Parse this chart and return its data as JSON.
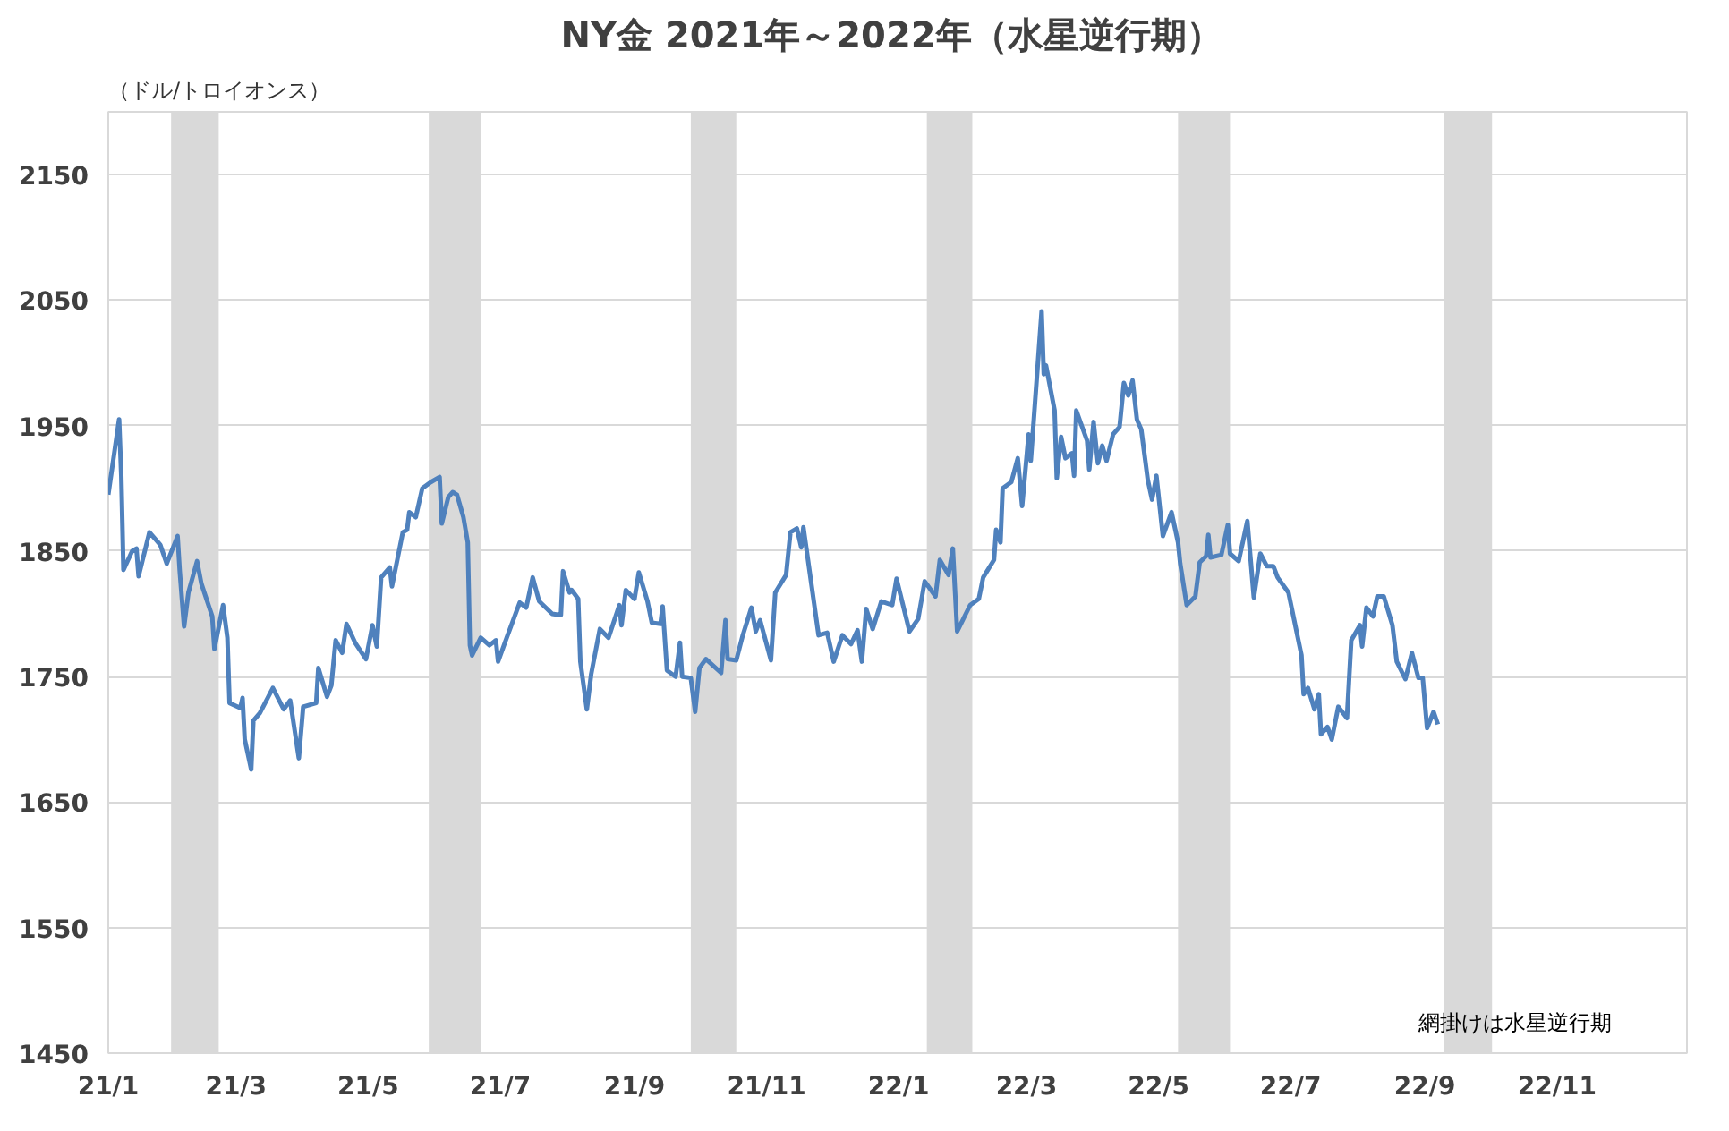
{
  "chart_data": {
    "type": "line",
    "title": "NY金  2021年～2022年（水星逆行期）",
    "ylabel": "（ドル/トロイオンス）",
    "annotations": [
      "網掛けは水星逆行期"
    ],
    "series": [
      {
        "color": "#4f81bd",
        "x": [
          "2021-01-01",
          "2021-01-06",
          "2021-01-07",
          "2021-01-08",
          "2021-01-12",
          "2021-01-14",
          "2021-01-15",
          "2021-01-20",
          "2021-01-25",
          "2021-01-28",
          "2021-02-02",
          "2021-02-03",
          "2021-02-05",
          "2021-02-07",
          "2021-02-11",
          "2021-02-13",
          "2021-02-18",
          "2021-02-19",
          "2021-02-23",
          "2021-02-25",
          "2021-02-26",
          "2021-03-03",
          "2021-03-04",
          "2021-03-05",
          "2021-03-08",
          "2021-03-09",
          "2021-03-12",
          "2021-03-18",
          "2021-03-23",
          "2021-03-26",
          "2021-03-30",
          "2021-04-01",
          "2021-04-07",
          "2021-04-08",
          "2021-04-12",
          "2021-04-14",
          "2021-04-16",
          "2021-04-19",
          "2021-04-21",
          "2021-04-25",
          "2021-04-30",
          "2021-05-03",
          "2021-05-05",
          "2021-05-07",
          "2021-05-11",
          "2021-05-12",
          "2021-05-17",
          "2021-05-19",
          "2021-05-20",
          "2021-05-23",
          "2021-05-26",
          "2021-05-30",
          "2021-06-03",
          "2021-06-04",
          "2021-06-07",
          "2021-06-09",
          "2021-06-11",
          "2021-06-14",
          "2021-06-16",
          "2021-06-17",
          "2021-06-18",
          "2021-06-22",
          "2021-06-26",
          "2021-06-29",
          "2021-06-30",
          "2021-07-04",
          "2021-07-10",
          "2021-07-13",
          "2021-07-16",
          "2021-07-19",
          "2021-07-25",
          "2021-07-29",
          "2021-07-30",
          "2021-08-02",
          "2021-08-03",
          "2021-08-06",
          "2021-08-07",
          "2021-08-10",
          "2021-08-12",
          "2021-08-16",
          "2021-08-20",
          "2021-08-25",
          "2021-08-26",
          "2021-08-28",
          "2021-09-01",
          "2021-09-03",
          "2021-09-07",
          "2021-09-09",
          "2021-09-13",
          "2021-09-14",
          "2021-09-16",
          "2021-09-20",
          "2021-09-22",
          "2021-09-23",
          "2021-09-27",
          "2021-09-29",
          "2021-10-01",
          "2021-10-04",
          "2021-10-11",
          "2021-10-13",
          "2021-10-14",
          "2021-10-18",
          "2021-10-21",
          "2021-10-25",
          "2021-10-27",
          "2021-10-29",
          "2021-11-03",
          "2021-11-05",
          "2021-11-10",
          "2021-11-12",
          "2021-11-15",
          "2021-11-17",
          "2021-11-18",
          "2021-11-25",
          "2021-11-29",
          "2021-12-02",
          "2021-12-06",
          "2021-12-10",
          "2021-12-13",
          "2021-12-15",
          "2021-12-17",
          "2021-12-20",
          "2021-12-24",
          "2021-12-29",
          "2021-12-31",
          "2022-01-04",
          "2022-01-06",
          "2022-01-10",
          "2022-01-13",
          "2022-01-18",
          "2022-01-20",
          "2022-01-24",
          "2022-01-26",
          "2022-01-28",
          "2022-02-03",
          "2022-02-07",
          "2022-02-09",
          "2022-02-14",
          "2022-02-15",
          "2022-02-17",
          "2022-02-18",
          "2022-02-22",
          "2022-02-25",
          "2022-02-27",
          "2022-03-02",
          "2022-03-03",
          "2022-03-08",
          "2022-03-09",
          "2022-03-10",
          "2022-03-14",
          "2022-03-15",
          "2022-03-17",
          "2022-03-19",
          "2022-03-22",
          "2022-03-23",
          "2022-03-24",
          "2022-03-29",
          "2022-03-30",
          "2022-04-01",
          "2022-04-03",
          "2022-04-05",
          "2022-04-07",
          "2022-04-10",
          "2022-04-13",
          "2022-04-15",
          "2022-04-17",
          "2022-04-19",
          "2022-04-21",
          "2022-04-23",
          "2022-04-26",
          "2022-04-28",
          "2022-04-30",
          "2022-05-03",
          "2022-05-07",
          "2022-05-10",
          "2022-05-11",
          "2022-05-14",
          "2022-05-18",
          "2022-05-20",
          "2022-05-23",
          "2022-05-24",
          "2022-05-25",
          "2022-05-30",
          "2022-06-02",
          "2022-06-03",
          "2022-06-07",
          "2022-06-11",
          "2022-06-14",
          "2022-06-17",
          "2022-06-20",
          "2022-06-23",
          "2022-06-25",
          "2022-06-30",
          "2022-07-06",
          "2022-07-07",
          "2022-07-09",
          "2022-07-12",
          "2022-07-14",
          "2022-07-15",
          "2022-07-18",
          "2022-07-20",
          "2022-07-23",
          "2022-07-27",
          "2022-07-29",
          "2022-08-02",
          "2022-08-03",
          "2022-08-05",
          "2022-08-08",
          "2022-08-10",
          "2022-08-13",
          "2022-08-17",
          "2022-08-19",
          "2022-08-23",
          "2022-08-26",
          "2022-08-29",
          "2022-08-31",
          "2022-09-02",
          "2022-09-05",
          "2022-09-07"
        ],
        "values": [
          1895,
          1955,
          1910,
          1835,
          1850,
          1852,
          1830,
          1865,
          1855,
          1840,
          1862,
          1834,
          1790,
          1817,
          1842,
          1824,
          1798,
          1772,
          1807,
          1781,
          1729,
          1725,
          1733,
          1700,
          1676,
          1715,
          1721,
          1741,
          1724,
          1731,
          1685,
          1726,
          1729,
          1757,
          1734,
          1743,
          1779,
          1769,
          1792,
          1777,
          1764,
          1791,
          1774,
          1829,
          1837,
          1822,
          1865,
          1867,
          1881,
          1877,
          1900,
          1905,
          1909,
          1872,
          1893,
          1897,
          1895,
          1877,
          1857,
          1775,
          1767,
          1781,
          1775,
          1779,
          1762,
          1781,
          1809,
          1805,
          1829,
          1810,
          1800,
          1799,
          1834,
          1817,
          1819,
          1812,
          1762,
          1724,
          1752,
          1788,
          1781,
          1807,
          1791,
          1819,
          1812,
          1833,
          1810,
          1793,
          1792,
          1806,
          1755,
          1750,
          1777,
          1750,
          1749,
          1722,
          1757,
          1764,
          1753,
          1795,
          1764,
          1763,
          1783,
          1805,
          1786,
          1795,
          1763,
          1817,
          1831,
          1865,
          1868,
          1853,
          1869,
          1783,
          1785,
          1762,
          1783,
          1776,
          1787,
          1762,
          1804,
          1788,
          1810,
          1807,
          1828,
          1800,
          1786,
          1796,
          1826,
          1814,
          1843,
          1831,
          1852,
          1786,
          1807,
          1812,
          1829,
          1843,
          1867,
          1857,
          1900,
          1905,
          1924,
          1886,
          1943,
          1922,
          2041,
          1991,
          1998,
          1962,
          1908,
          1941,
          1924,
          1928,
          1910,
          1962,
          1938,
          1915,
          1953,
          1920,
          1934,
          1922,
          1943,
          1949,
          1984,
          1974,
          1986,
          1955,
          1947,
          1907,
          1891,
          1910,
          1862,
          1881,
          1857,
          1840,
          1807,
          1814,
          1841,
          1846,
          1863,
          1845,
          1847,
          1871,
          1848,
          1842,
          1874,
          1813,
          1848,
          1838,
          1838,
          1829,
          1817,
          1767,
          1736,
          1741,
          1724,
          1736,
          1704,
          1710,
          1700,
          1726,
          1717,
          1779,
          1791,
          1774,
          1805,
          1798,
          1814,
          1814,
          1791,
          1762,
          1748,
          1769,
          1749,
          1749,
          1709,
          1722,
          1712
        ]
      }
    ],
    "xlim": [
      "2021-01-01",
      "2022-12-31"
    ],
    "xticks": [
      {
        "value": "2021-01-01",
        "label": "21/1"
      },
      {
        "value": "2021-03-01",
        "label": "21/3"
      },
      {
        "value": "2021-05-01",
        "label": "21/5"
      },
      {
        "value": "2021-07-01",
        "label": "21/7"
      },
      {
        "value": "2021-09-01",
        "label": "21/9"
      },
      {
        "value": "2021-11-01",
        "label": "21/11"
      },
      {
        "value": "2022-01-01",
        "label": "22/1"
      },
      {
        "value": "2022-03-01",
        "label": "22/3"
      },
      {
        "value": "2022-05-01",
        "label": "22/5"
      },
      {
        "value": "2022-07-01",
        "label": "22/7"
      },
      {
        "value": "2022-09-01",
        "label": "22/9"
      },
      {
        "value": "2022-11-01",
        "label": "22/11"
      }
    ],
    "ylim": [
      1450,
      2200
    ],
    "yticks": [
      1450,
      1550,
      1650,
      1750,
      1850,
      1950,
      2050,
      2150
    ],
    "grid": "y",
    "marker": "none",
    "line_style": "solid",
    "bands": [
      {
        "axis": "x",
        "from": "2021-01-30",
        "to": "2021-02-21",
        "color": "#d9d9d9"
      },
      {
        "axis": "x",
        "from": "2021-05-29",
        "to": "2021-06-22",
        "color": "#d9d9d9"
      },
      {
        "axis": "x",
        "from": "2021-09-27",
        "to": "2021-10-18",
        "color": "#d9d9d9"
      },
      {
        "axis": "x",
        "from": "2022-01-14",
        "to": "2022-02-04",
        "color": "#d9d9d9"
      },
      {
        "axis": "x",
        "from": "2022-05-10",
        "to": "2022-06-03",
        "color": "#d9d9d9"
      },
      {
        "axis": "x",
        "from": "2022-09-10",
        "to": "2022-10-02",
        "color": "#d9d9d9"
      }
    ]
  }
}
